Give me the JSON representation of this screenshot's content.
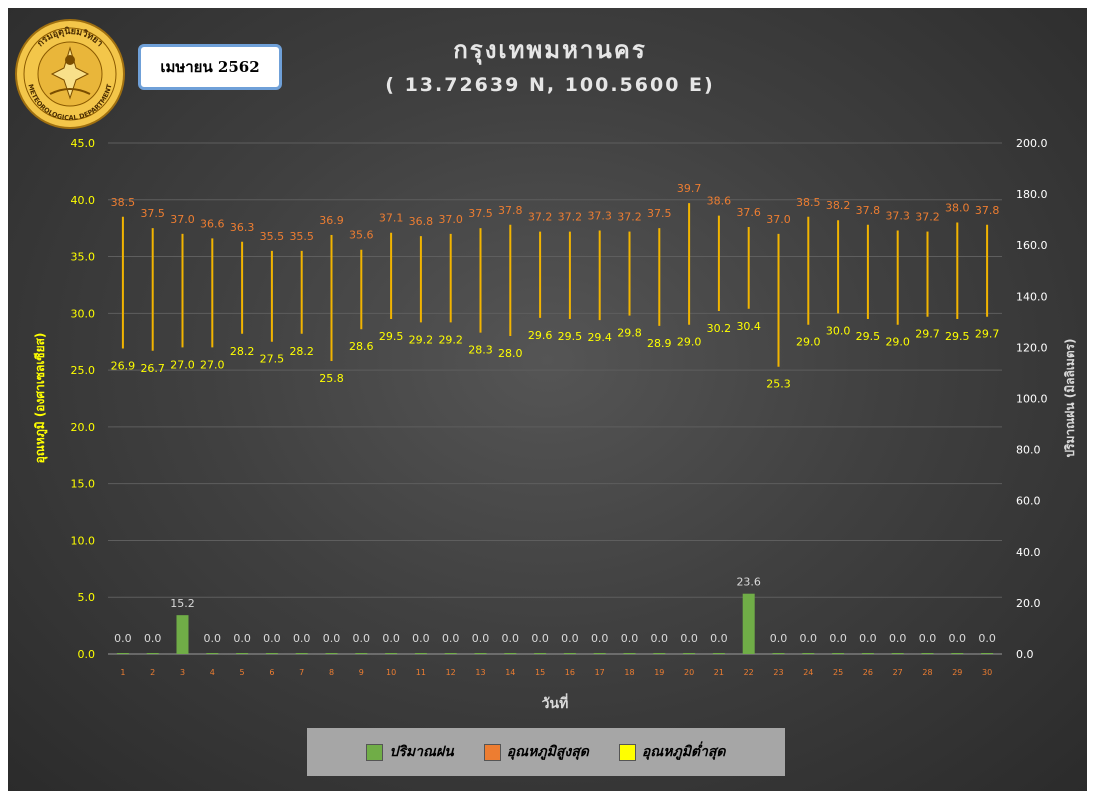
{
  "header": {
    "month_label": "เมษายน 2562",
    "title": "กรุงเทพมหานคร",
    "subtitle": "( 13.72639 N, 100.5600 E)",
    "logo_text_top": "กรมอุตุนิยมวิทยา",
    "logo_text_bottom": "METEOROLOGICAL DEPARTMENT"
  },
  "legend": {
    "items": [
      {
        "label": "ปริมาณฝน",
        "color": "#70ad47"
      },
      {
        "label": "อุณหภูมิสูงสุด",
        "color": "#ed7d31"
      },
      {
        "label": "อุณหภูมิต่ำสุด",
        "color": "#ffff00"
      }
    ]
  },
  "chart_data": {
    "type": "bar",
    "xlabel": "วันที่",
    "ylabel_left": "อุณหภูมิ (องศาเซลเซียส)",
    "ylabel_right": "ปริมาณฝน (มิลลิเมตร)",
    "ylim_left": [
      0,
      45
    ],
    "ylim_right": [
      0,
      200
    ],
    "yticks_left": [
      "0.0",
      "5.0",
      "10.0",
      "15.0",
      "20.0",
      "25.0",
      "30.0",
      "35.0",
      "40.0",
      "45.0"
    ],
    "yticks_right": [
      "0.0",
      "20.0",
      "40.0",
      "60.0",
      "80.0",
      "100.0",
      "120.0",
      "140.0",
      "160.0",
      "180.0",
      "200.0"
    ],
    "grid": true,
    "categories": [
      "1",
      "2",
      "3",
      "4",
      "5",
      "6",
      "7",
      "8",
      "9",
      "10",
      "11",
      "12",
      "13",
      "14",
      "15",
      "16",
      "17",
      "18",
      "19",
      "20",
      "21",
      "22",
      "23",
      "24",
      "25",
      "26",
      "27",
      "28",
      "29",
      "30"
    ],
    "series": [
      {
        "name": "ปริมาณฝน",
        "axis": "right",
        "color": "#70ad47",
        "values": [
          0.0,
          0.0,
          15.2,
          0.0,
          0.0,
          0.0,
          0.0,
          0.0,
          0.0,
          0.0,
          0.0,
          0.0,
          0.0,
          0.0,
          0.0,
          0.0,
          0.0,
          0.0,
          0.0,
          0.0,
          0.0,
          23.6,
          0.0,
          0.0,
          0.0,
          0.0,
          0.0,
          0.0,
          0.0,
          0.0
        ]
      },
      {
        "name": "อุณหภูมิสูงสุด",
        "axis": "left",
        "color": "#ed7d31",
        "values": [
          38.5,
          37.5,
          37.0,
          36.6,
          36.3,
          35.5,
          35.5,
          36.9,
          35.6,
          37.1,
          36.8,
          37.0,
          37.5,
          37.8,
          37.2,
          37.2,
          37.3,
          37.2,
          37.5,
          39.7,
          38.6,
          37.6,
          37.0,
          38.5,
          38.2,
          37.8,
          37.3,
          37.2,
          38.0,
          37.8
        ]
      },
      {
        "name": "อุณหภูมิต่ำสุด",
        "axis": "left",
        "color": "#ffff00",
        "values": [
          26.9,
          26.7,
          27.0,
          27.0,
          28.2,
          27.5,
          28.2,
          25.8,
          28.6,
          29.5,
          29.2,
          29.2,
          28.3,
          28.0,
          29.6,
          29.5,
          29.4,
          29.8,
          28.9,
          29.0,
          30.2,
          30.4,
          25.3,
          29.0,
          30.0,
          29.5,
          29.0,
          29.7,
          29.5,
          29.7
        ]
      }
    ],
    "colors": {
      "left_axis_text": "#ffff00",
      "right_axis_text": "#ffffff",
      "x_tick_text": "#ed7d31",
      "range_line": "#f2b400",
      "rain_label": "#d9d9d9"
    }
  }
}
